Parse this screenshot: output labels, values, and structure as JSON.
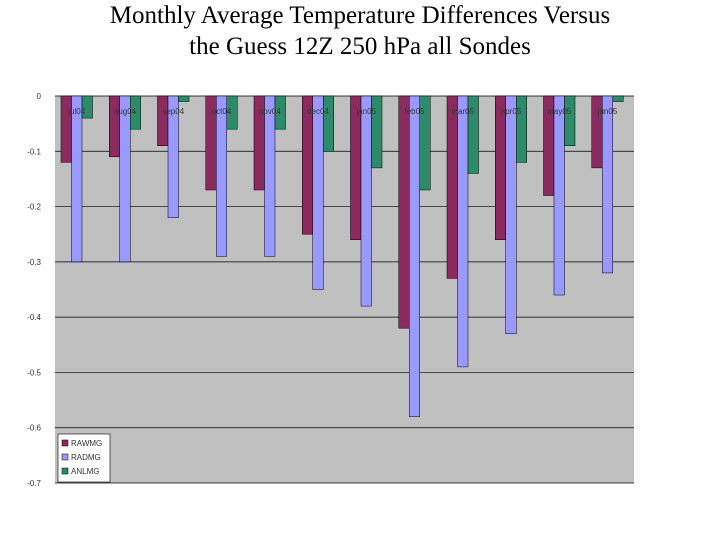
{
  "title": {
    "line1": "Monthly Average Temperature Differences Versus",
    "line2": "the Guess 12Z 250 hPa all Sondes"
  },
  "chart_data": {
    "type": "bar",
    "categories": [
      "jul04",
      "aug04",
      "sep04",
      "oct04",
      "nov04",
      "dec04",
      "jan05",
      "feb05",
      "mar05",
      "apr05",
      "may05",
      "jun05"
    ],
    "series": [
      {
        "name": "RAWMG",
        "color": "#8b2a5e",
        "values": [
          -0.12,
          -0.11,
          -0.09,
          -0.17,
          -0.17,
          -0.25,
          -0.26,
          -0.42,
          -0.33,
          -0.26,
          -0.18,
          -0.13
        ]
      },
      {
        "name": "RADMG",
        "color": "#9999ff",
        "values": [
          -0.3,
          -0.3,
          -0.22,
          -0.29,
          -0.29,
          -0.35,
          -0.38,
          -0.58,
          -0.49,
          -0.43,
          -0.36,
          -0.32
        ]
      },
      {
        "name": "ANLMG",
        "color": "#2e8b6a",
        "values": [
          -0.04,
          -0.06,
          -0.01,
          -0.06,
          -0.06,
          -0.1,
          -0.13,
          -0.17,
          -0.14,
          -0.12,
          -0.09,
          -0.01
        ]
      }
    ],
    "yticks": [
      "0",
      "-0.1",
      "-0.2",
      "-0.3",
      "-0.4",
      "-0.5",
      "-0.6",
      "-0.7"
    ],
    "ylim": [
      -0.7,
      0
    ],
    "grid": true,
    "legend_position": "bottom-left",
    "plot_background": "#c0c0c0"
  }
}
